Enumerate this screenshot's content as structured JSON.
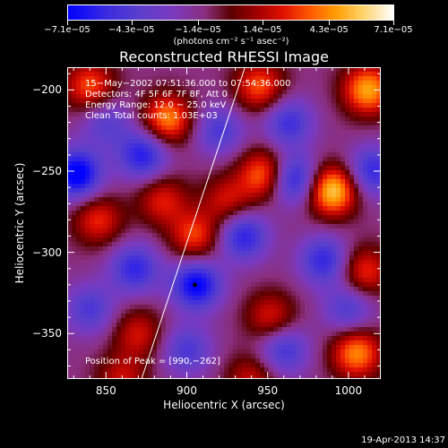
{
  "chart_data": {
    "type": "heatmap",
    "title": "Reconstructed RHESSI Image",
    "xlabel": "Heliocentric X (arcsec)",
    "ylabel": "Heliocentric Y (arcsec)",
    "xlim": [
      826,
      1020
    ],
    "ylim": [
      -378,
      -186
    ],
    "x_ticks": [
      850,
      900,
      950,
      1000
    ],
    "y_ticks": [
      -200,
      -250,
      -300,
      -350
    ],
    "x_tick_labels": [
      "850",
      "900",
      "950",
      "1000"
    ],
    "y_tick_labels": [
      "−200",
      "−250",
      "−300",
      "−350"
    ],
    "colorbar": {
      "range": [
        -7.1e-05,
        7.1e-05
      ],
      "tick_values": [
        -7.1e-05,
        -4.3e-05,
        -1.4e-05,
        1.4e-05,
        4.3e-05,
        7.1e-05
      ],
      "tick_labels": [
        "−7.1e−05",
        "−4.3e−05",
        "−1.4e−05",
        "1.4e−05",
        "4.3e−05",
        "7.1e−05"
      ],
      "unit_label": "(photons cm⁻² s⁻¹ asec⁻²)"
    },
    "annotations": {
      "time_range": "15−May−2002 07:51:36.000 to 07:54:36.000",
      "detectors": "Detectors: 4F 5F 6F 7F 8F, Att 0",
      "energy": "Energy Range: 12.0 − 25.0 keV",
      "clean": "Clean    Total counts: 1.03E+03",
      "peak": "Position of Peak = [990,−262]"
    },
    "peak_position": [
      990,
      -262
    ],
    "limb_line": [
      [
        872,
        -378
      ],
      [
        936,
        -186
      ]
    ],
    "marker_point": [
      905,
      -320
    ],
    "blobs": [
      {
        "x": 990,
        "y": -262,
        "v": 7.1e-05
      },
      {
        "x": 1012,
        "y": -200,
        "v": 6e-05
      },
      {
        "x": 945,
        "y": -198,
        "v": 4.5e-05
      },
      {
        "x": 888,
        "y": -218,
        "v": 5.5e-05
      },
      {
        "x": 948,
        "y": -252,
        "v": 5.2e-05
      },
      {
        "x": 840,
        "y": -198,
        "v": 4.5e-05
      },
      {
        "x": 845,
        "y": -280,
        "v": 3.8e-05
      },
      {
        "x": 885,
        "y": -268,
        "v": 3.5e-05
      },
      {
        "x": 905,
        "y": -290,
        "v": 4.2e-05
      },
      {
        "x": 925,
        "y": -268,
        "v": 3.2e-05
      },
      {
        "x": 1005,
        "y": -362,
        "v": 5.5e-05
      },
      {
        "x": 1010,
        "y": -312,
        "v": 4e-05
      },
      {
        "x": 952,
        "y": -340,
        "v": 3.5e-05
      },
      {
        "x": 870,
        "y": -350,
        "v": 3.2e-05
      },
      {
        "x": 860,
        "y": -378,
        "v": 3e-05
      },
      {
        "x": 940,
        "y": -378,
        "v": 3e-05
      },
      {
        "x": 832,
        "y": -252,
        "v": -6.5e-05
      },
      {
        "x": 906,
        "y": -320,
        "v": -6e-05
      },
      {
        "x": 966,
        "y": -255,
        "v": -5.5e-05
      },
      {
        "x": 873,
        "y": -240,
        "v": -5e-05
      },
      {
        "x": 868,
        "y": -310,
        "v": -4.5e-05
      },
      {
        "x": 935,
        "y": -290,
        "v": -4.8e-05
      },
      {
        "x": 985,
        "y": -305,
        "v": -4.5e-05
      },
      {
        "x": 963,
        "y": -220,
        "v": -4e-05
      },
      {
        "x": 1015,
        "y": -250,
        "v": -4.5e-05
      },
      {
        "x": 920,
        "y": -225,
        "v": -3.5e-05
      },
      {
        "x": 960,
        "y": -360,
        "v": -4e-05
      },
      {
        "x": 900,
        "y": -360,
        "v": -3.5e-05
      },
      {
        "x": 840,
        "y": -335,
        "v": -3.5e-05
      },
      {
        "x": 1000,
        "y": -335,
        "v": -3.5e-05
      },
      {
        "x": 850,
        "y": -220,
        "v": -3e-05
      }
    ]
  },
  "footer_timestamp": "19-Apr-2013 14:37"
}
